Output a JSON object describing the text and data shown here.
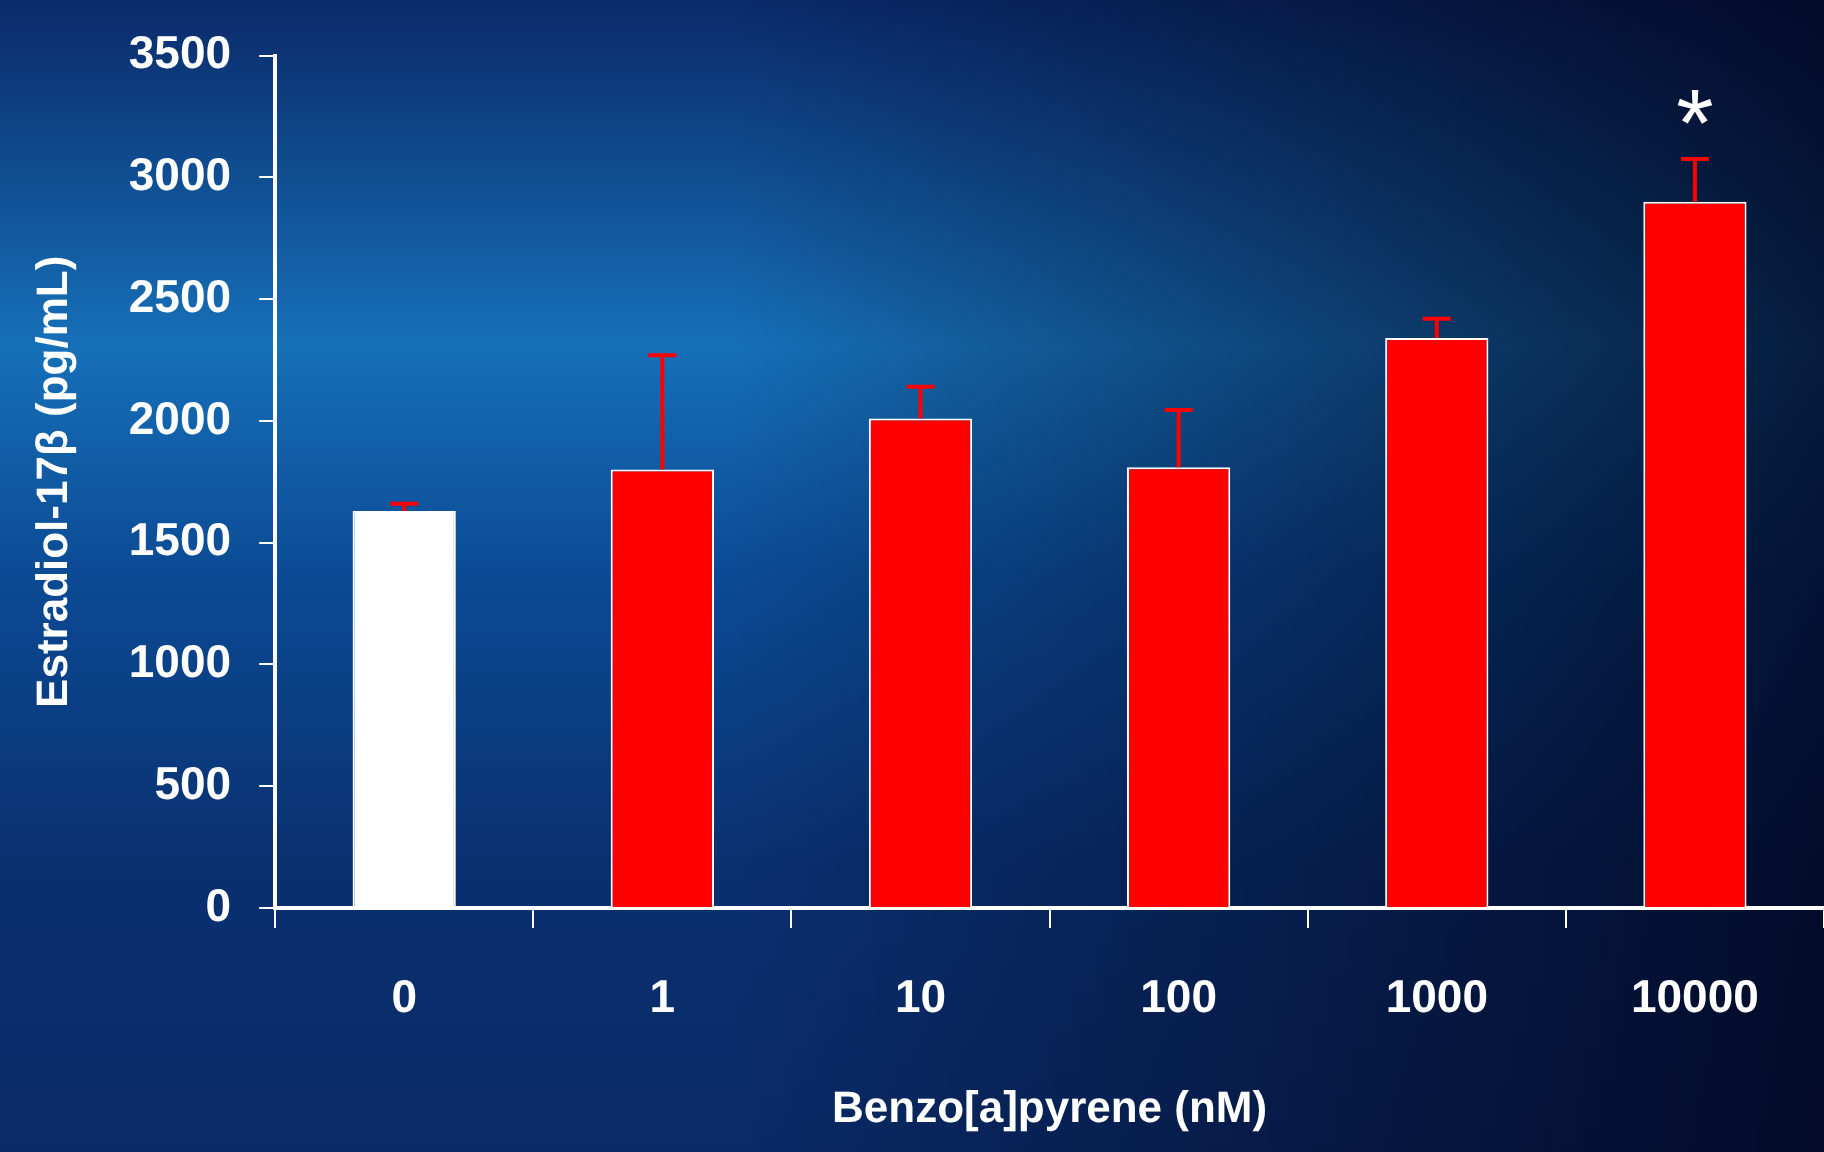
{
  "chart_data": {
    "type": "bar",
    "xlabel": "Benzo[a]pyrene (nM)",
    "ylabel": "Estradiol-17β (pg/mL)",
    "categories": [
      "0",
      "1",
      "10",
      "100",
      "1000",
      "10000"
    ],
    "values": [
      1630,
      1800,
      2010,
      1810,
      2340,
      2900
    ],
    "errors": [
      30,
      470,
      130,
      235,
      80,
      175
    ],
    "colors": [
      "#ffffff",
      "#ff0000",
      "#ff0000",
      "#ff0000",
      "#ff0000",
      "#ff0000"
    ],
    "ylim": [
      0,
      3500
    ],
    "yticks": [
      0,
      500,
      1000,
      1500,
      2000,
      2500,
      3000,
      3500
    ],
    "grid": false,
    "legend": false,
    "annotations": [
      {
        "text": "*",
        "x": "10000",
        "y": 3070
      }
    ]
  }
}
